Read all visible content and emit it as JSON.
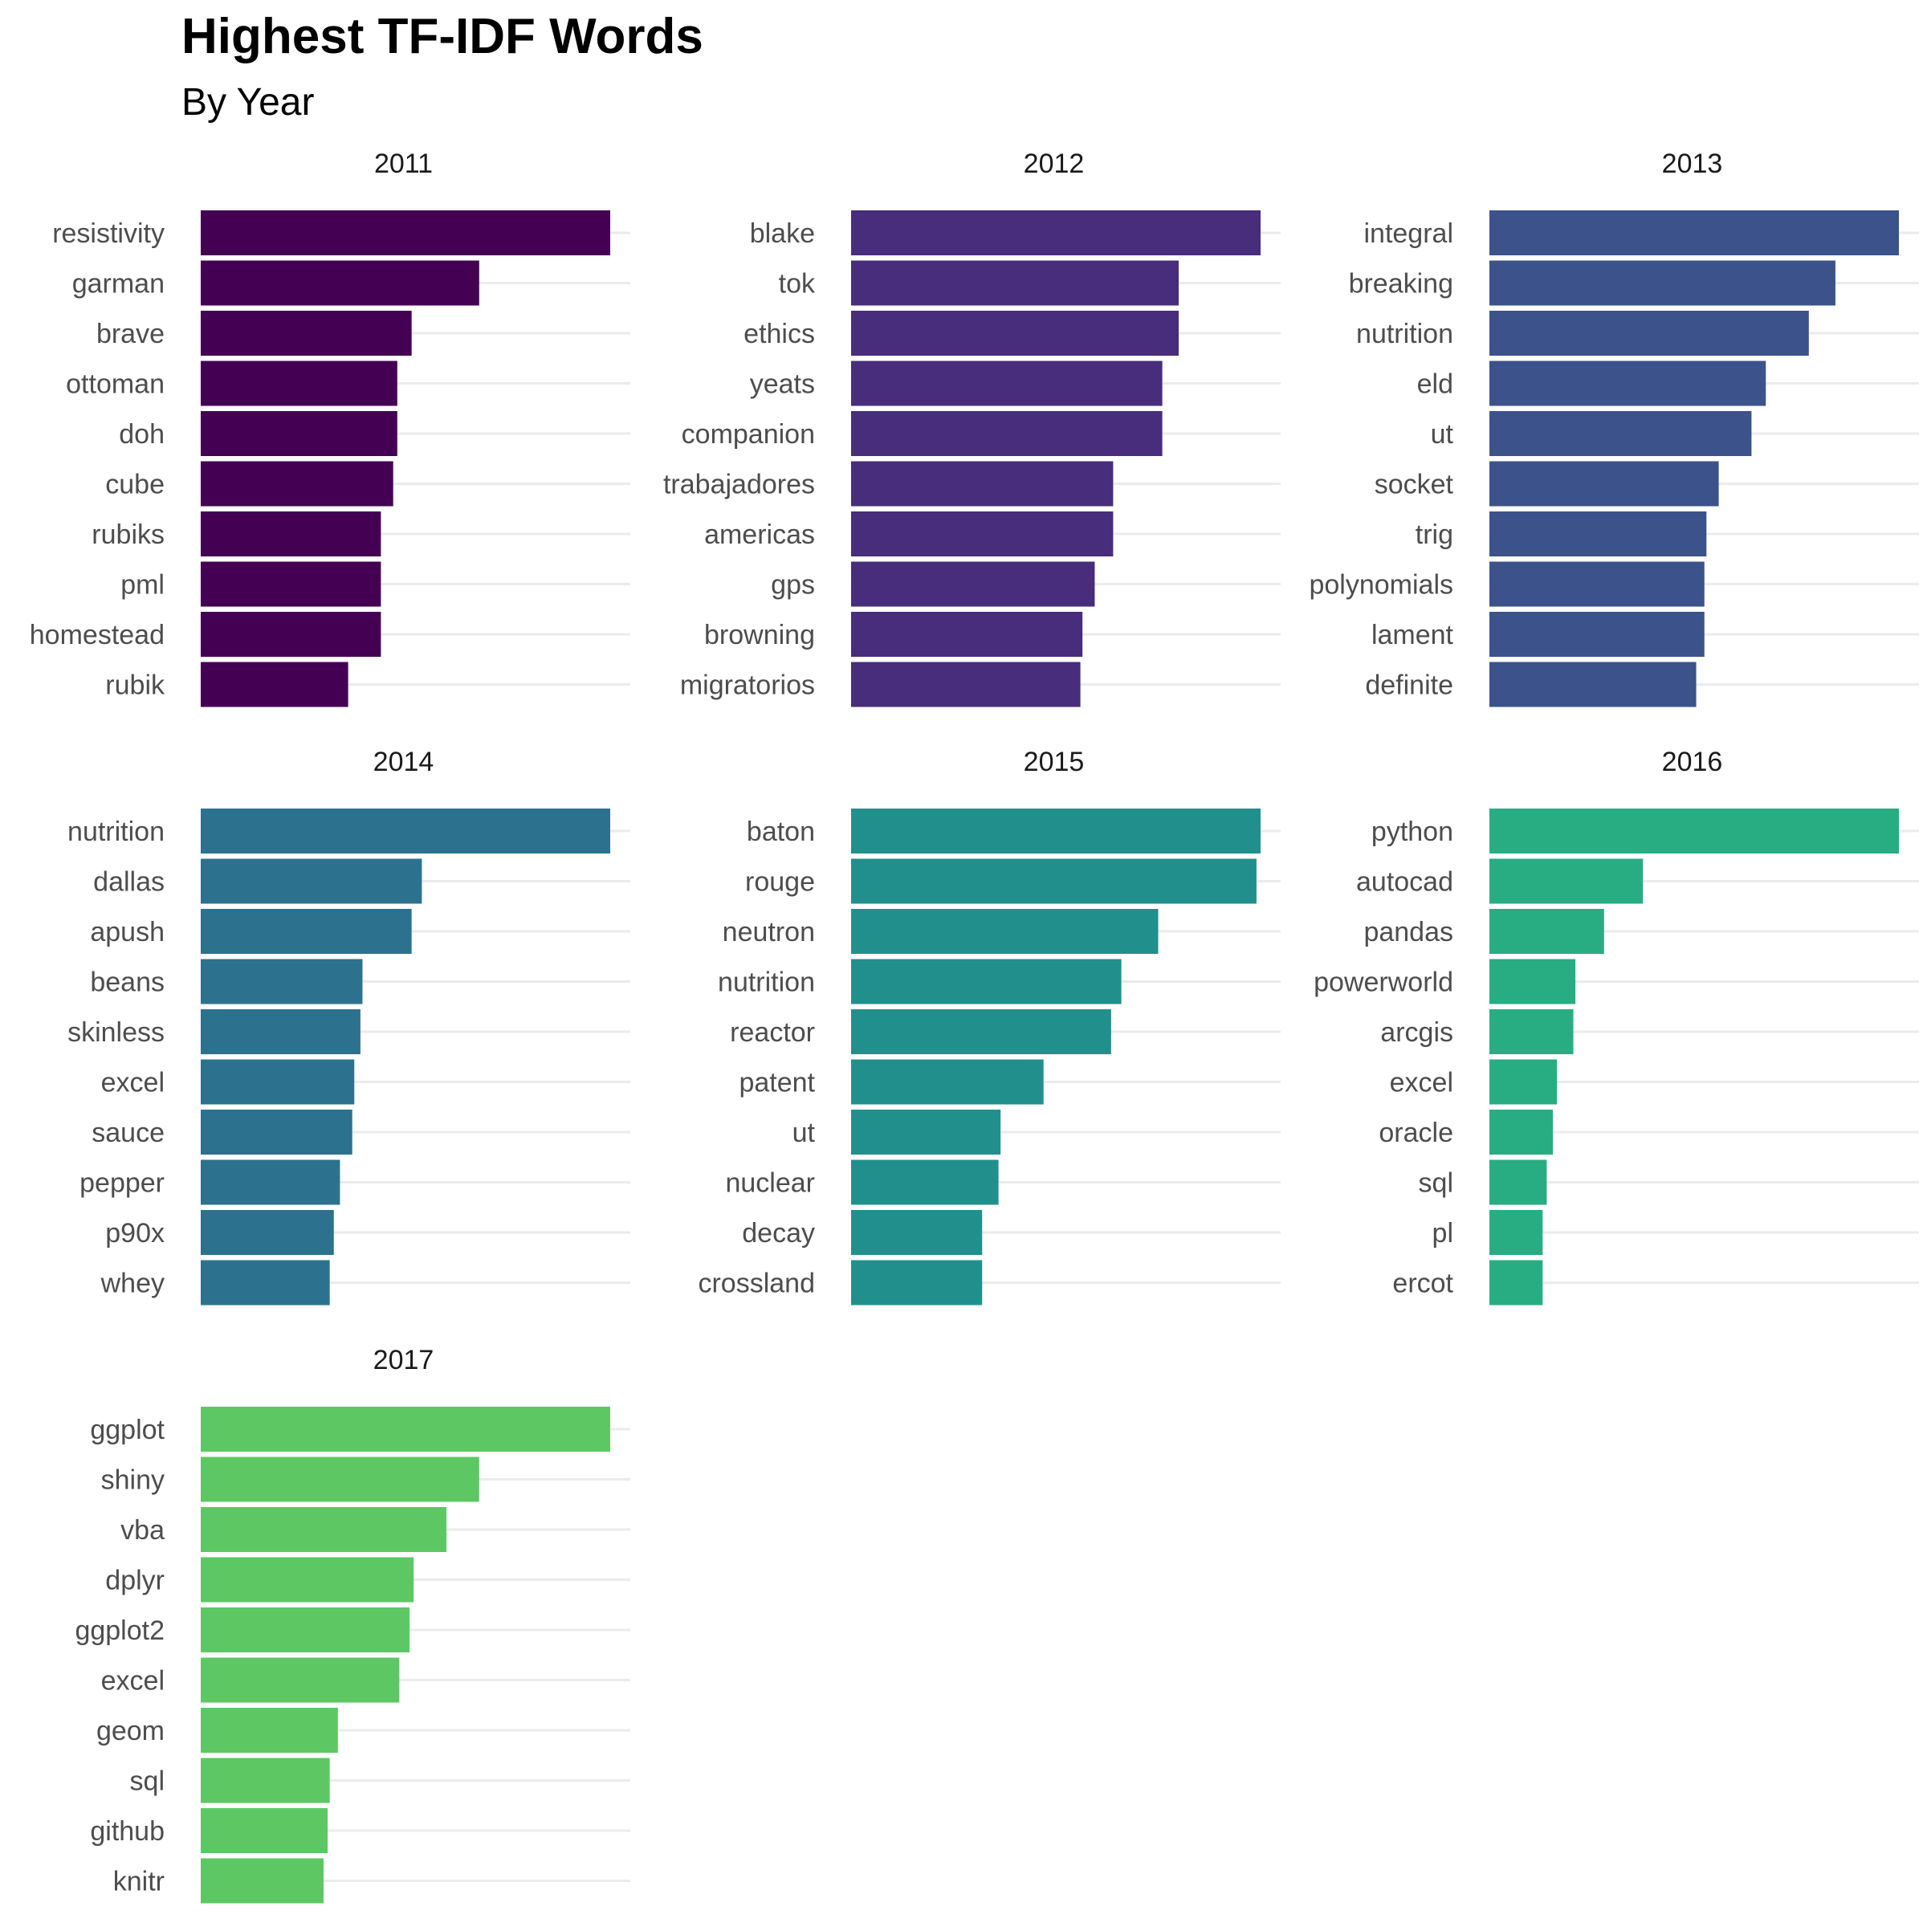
{
  "chart_data": {
    "type": "bar",
    "orientation": "horizontal",
    "title": "Highest TF-IDF Words",
    "subtitle": "By Year",
    "xlabel": "",
    "ylabel": "",
    "grid": "horizontal major",
    "legend": "none",
    "facets": [
      {
        "label": "2011",
        "color": "#440154",
        "categories": [
          "resistivity",
          "garman",
          "brave",
          "ottoman",
          "doh",
          "cube",
          "rubiks",
          "pml",
          "homestead",
          "rubik"
        ],
        "values": [
          1.0,
          0.68,
          0.515,
          0.48,
          0.48,
          0.47,
          0.44,
          0.44,
          0.44,
          0.36
        ]
      },
      {
        "label": "2012",
        "color": "#472D7B",
        "categories": [
          "blake",
          "tok",
          "ethics",
          "yeats",
          "companion",
          "trabajadores",
          "americas",
          "gps",
          "browning",
          "migratorios"
        ],
        "values": [
          1.0,
          0.8,
          0.8,
          0.76,
          0.76,
          0.64,
          0.64,
          0.595,
          0.565,
          0.56
        ]
      },
      {
        "label": "2013",
        "color": "#3B528B",
        "categories": [
          "integral",
          "breaking",
          "nutrition",
          "eld",
          "ut",
          "socket",
          "trig",
          "polynomials",
          "lament",
          "definite"
        ],
        "values": [
          1.0,
          0.845,
          0.78,
          0.675,
          0.64,
          0.56,
          0.53,
          0.525,
          0.525,
          0.505
        ]
      },
      {
        "label": "2014",
        "color": "#2C728E",
        "categories": [
          "nutrition",
          "dallas",
          "apush",
          "beans",
          "skinless",
          "excel",
          "sauce",
          "pepper",
          "p90x",
          "whey"
        ],
        "values": [
          1.0,
          0.54,
          0.515,
          0.395,
          0.39,
          0.375,
          0.37,
          0.34,
          0.325,
          0.315
        ]
      },
      {
        "label": "2015",
        "color": "#21908C",
        "categories": [
          "baton",
          "rouge",
          "neutron",
          "nutrition",
          "reactor",
          "patent",
          "ut",
          "nuclear",
          "decay",
          "crossland"
        ],
        "values": [
          1.0,
          0.99,
          0.75,
          0.66,
          0.635,
          0.47,
          0.365,
          0.36,
          0.32,
          0.32
        ]
      },
      {
        "label": "2016",
        "color": "#27AD81",
        "categories": [
          "python",
          "autocad",
          "pandas",
          "powerworld",
          "arcgis",
          "excel",
          "oracle",
          "sql",
          "pl",
          "ercot"
        ],
        "values": [
          1.0,
          0.375,
          0.28,
          0.21,
          0.205,
          0.165,
          0.155,
          0.14,
          0.13,
          0.13
        ]
      },
      {
        "label": "2017",
        "color": "#5DC863",
        "categories": [
          "ggplot",
          "shiny",
          "vba",
          "dplyr",
          "ggplot2",
          "excel",
          "geom",
          "sql",
          "github",
          "knitr"
        ],
        "values": [
          1.0,
          0.68,
          0.6,
          0.52,
          0.51,
          0.485,
          0.335,
          0.315,
          0.31,
          0.3
        ]
      }
    ]
  }
}
